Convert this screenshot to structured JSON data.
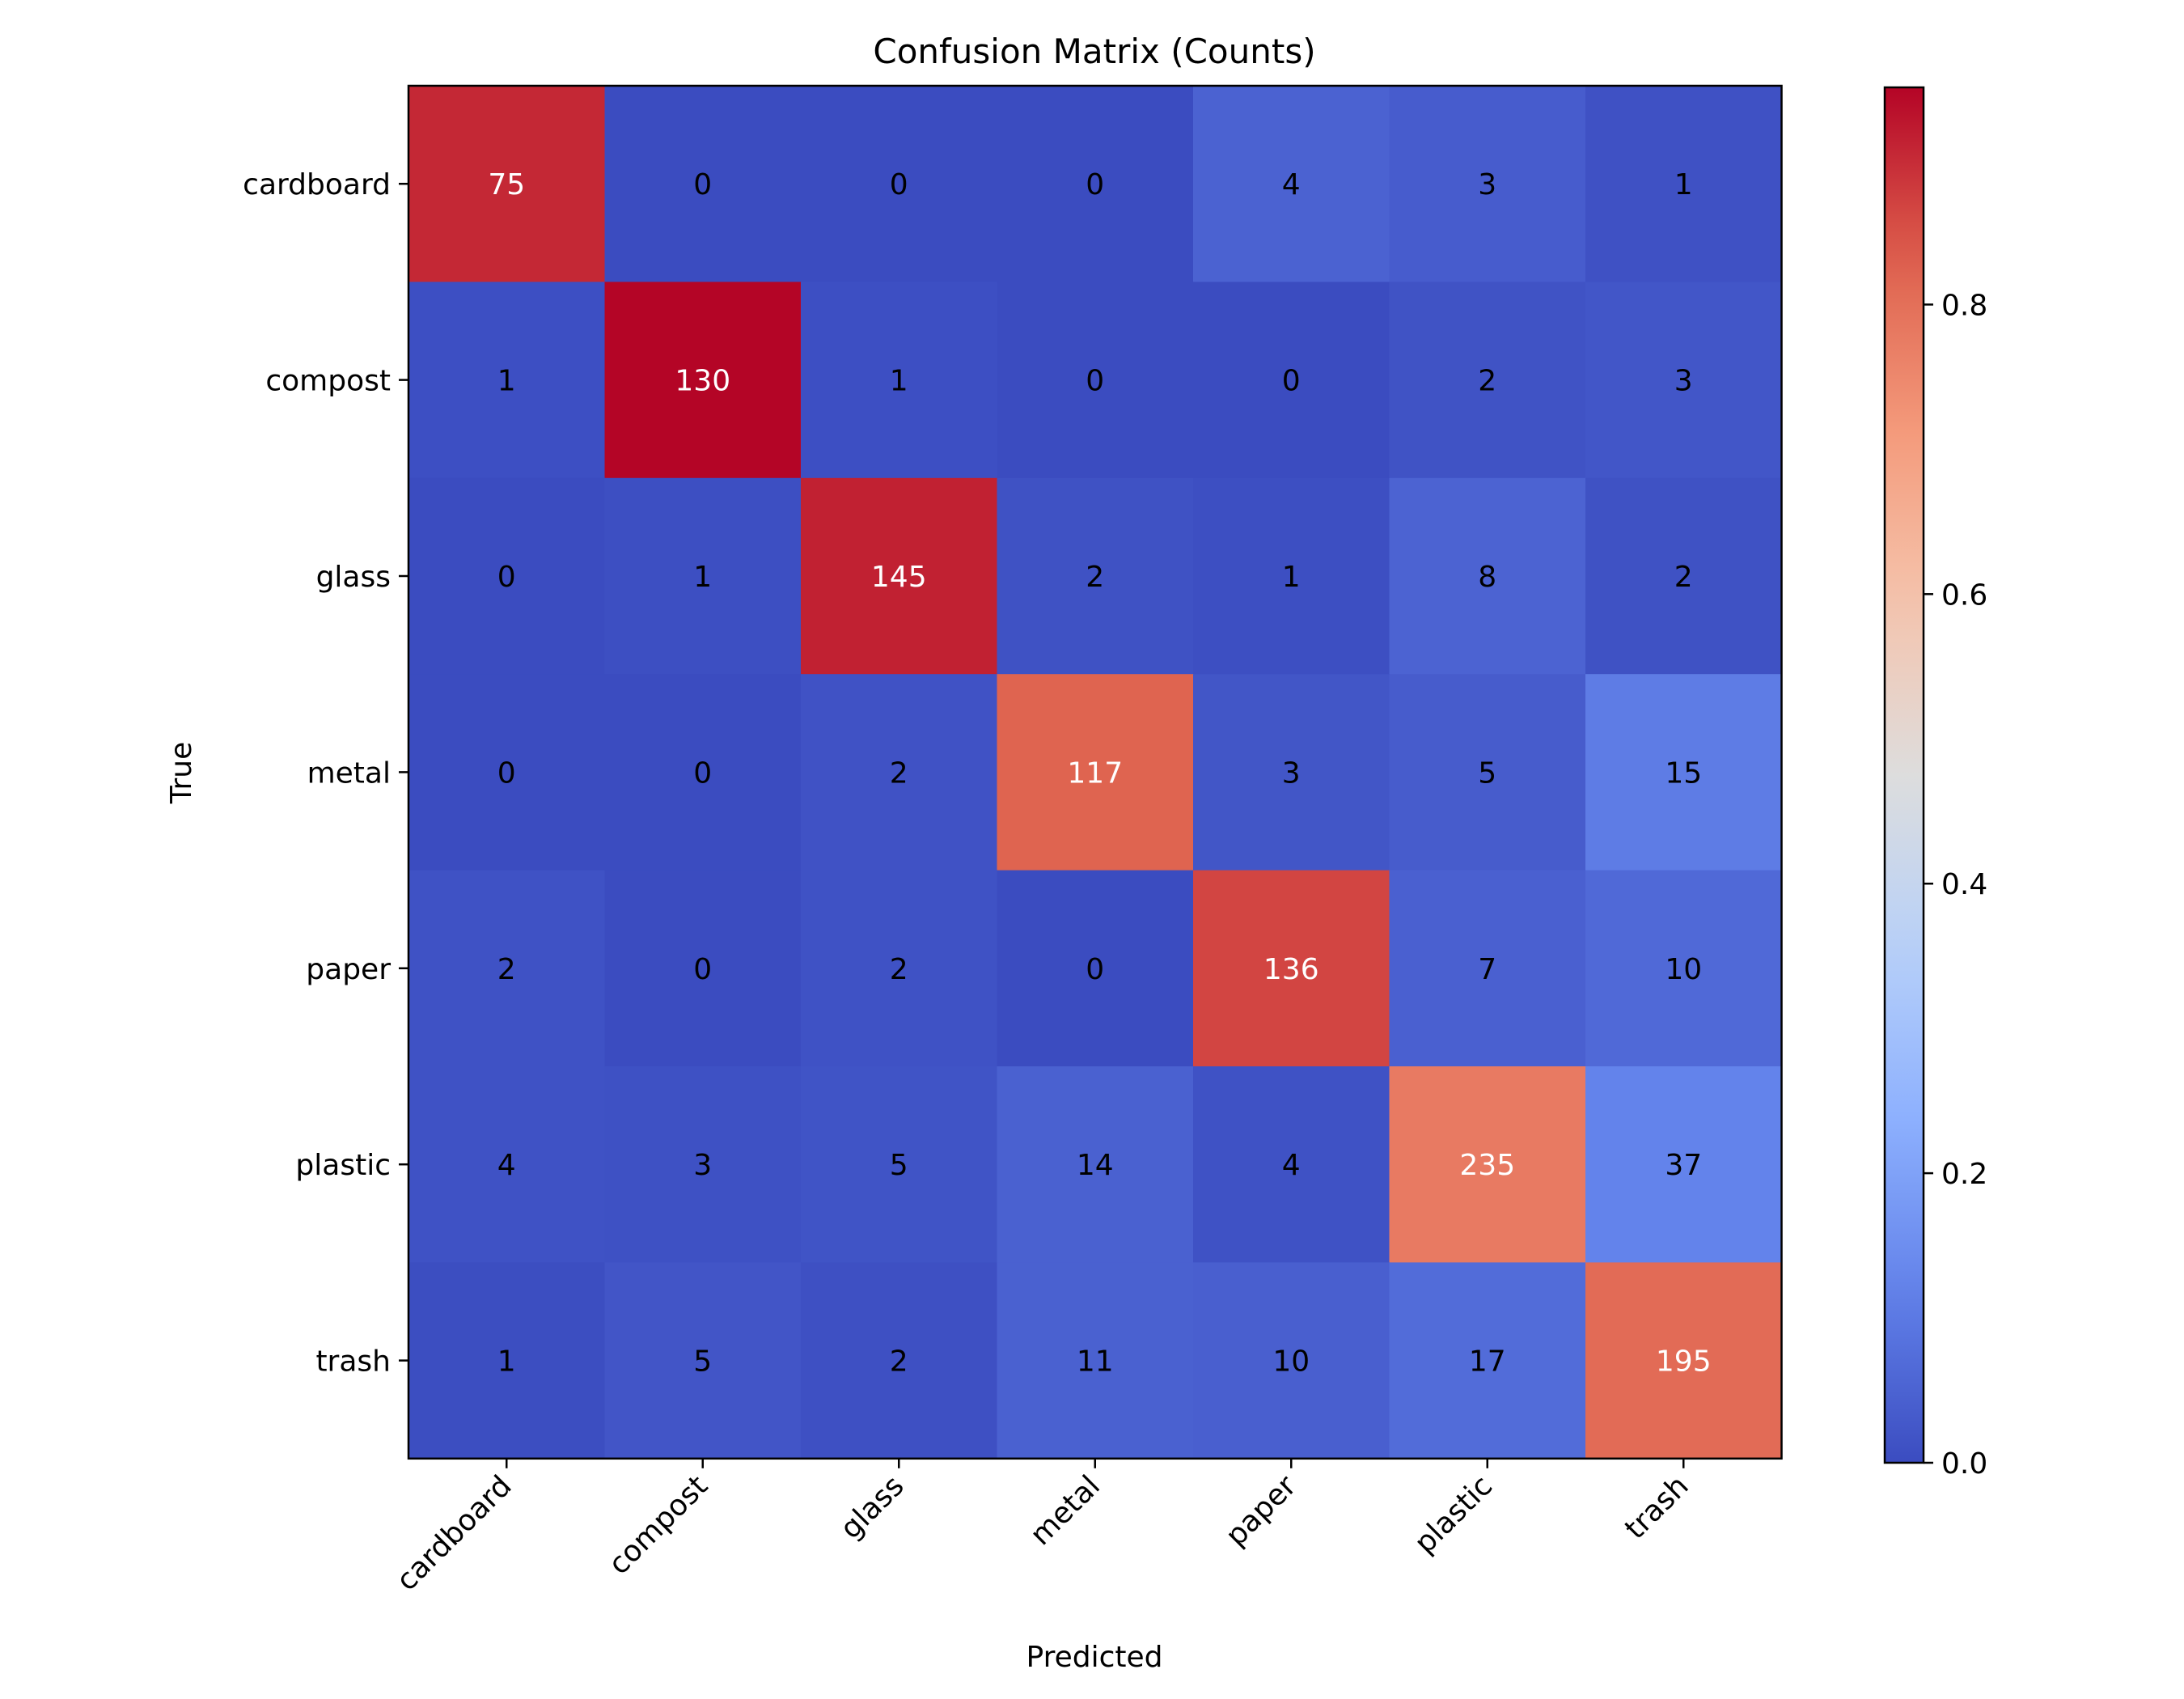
{
  "chart_data": {
    "type": "heatmap",
    "title": "Confusion Matrix (Counts)",
    "xlabel": "Predicted",
    "ylabel": "True",
    "x_categories": [
      "cardboard",
      "compost",
      "glass",
      "metal",
      "paper",
      "plastic",
      "trash"
    ],
    "y_categories": [
      "cardboard",
      "compost",
      "glass",
      "metal",
      "paper",
      "plastic",
      "trash"
    ],
    "values": [
      [
        75,
        0,
        0,
        0,
        4,
        3,
        1
      ],
      [
        1,
        130,
        1,
        0,
        0,
        2,
        3
      ],
      [
        0,
        1,
        145,
        2,
        1,
        8,
        2
      ],
      [
        0,
        0,
        2,
        117,
        3,
        5,
        15
      ],
      [
        2,
        0,
        2,
        0,
        136,
        7,
        10
      ],
      [
        4,
        3,
        5,
        14,
        4,
        235,
        37
      ],
      [
        1,
        5,
        2,
        11,
        10,
        17,
        195
      ]
    ],
    "color_scale": "row-normalized",
    "colormap": "coolwarm",
    "colorbar": {
      "range": [
        0,
        0.95
      ],
      "ticks": [
        "0.0",
        "0.2",
        "0.4",
        "0.6",
        "0.8"
      ]
    },
    "colors": {
      "cold": "#3b4cc0",
      "neutral": "#dddddd",
      "warm": "#b40426"
    }
  }
}
